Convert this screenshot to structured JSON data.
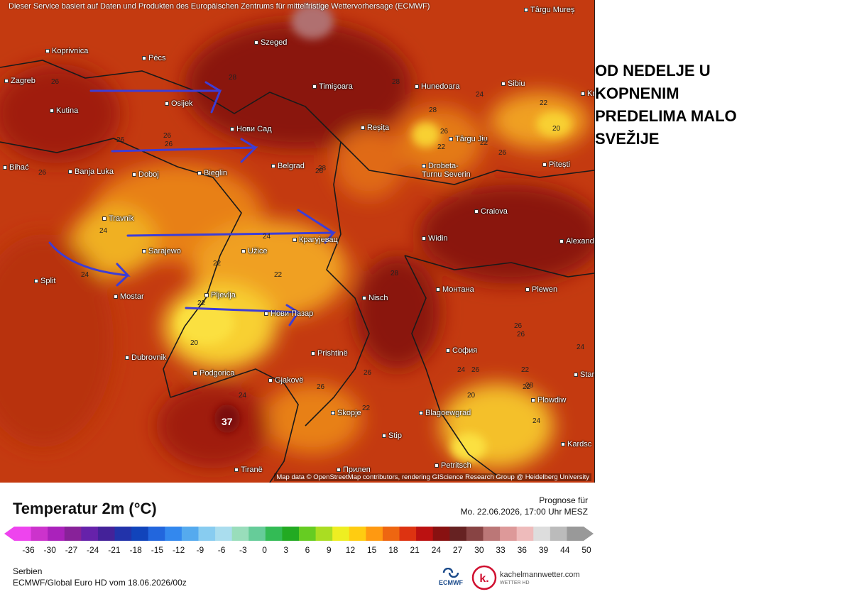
{
  "map": {
    "attribution": "Dieser Service basiert auf Daten und Produkten des Europäischen Zentrums für mittelfristige Wettervorhersage (ECMWF)",
    "map_credit": "Map data © OpenStreetMap contributors, rendering GIScience Research Group @ Heidelberg University",
    "cities": [
      "Koprivnica",
      "Pécs",
      "Szeged",
      "Zagreb",
      "Osijek",
      "Timişoara",
      "Hunedoara",
      "Sibiu",
      "Târgu Mureș",
      "Kutina",
      "Нови Сад",
      "Reșița",
      "Târgu Jiu",
      "Banja Luka",
      "Doboj",
      "Bieglin",
      "Belgrad",
      "Drobeta-Turnu Severin",
      "Pitești",
      "Travnik",
      "Крагујевац",
      "Craiova",
      "Sarajewo",
      "Užice",
      "Widin",
      "Alexand",
      "Split",
      "Mostar",
      "Pljevlja",
      "Nisch",
      "Монтана",
      "Plewen",
      "Нови Пазар",
      "Dubrovnik",
      "Prishtinë",
      "София",
      "Podgorica",
      "Gjakovë",
      "Plowdiw",
      "Skopje",
      "Blagoewgrad",
      "Stip",
      "Kardsc",
      "Tiranë",
      "Прилеп",
      "Petritsch",
      "Stara",
      "Bihać",
      "Kr"
    ],
    "values": [
      "26",
      "26",
      "26",
      "28",
      "28",
      "28",
      "26",
      "24",
      "22",
      "26",
      "20",
      "22",
      "22",
      "26",
      "28",
      "24",
      "24",
      "22",
      "24",
      "22",
      "22",
      "24",
      "26",
      "26",
      "22",
      "24",
      "26",
      "28",
      "26",
      "28",
      "24",
      "24",
      "20",
      "26",
      "20",
      "26",
      "22",
      "22",
      "37",
      "26"
    ]
  },
  "headline": [
    "OD NEDELJE U",
    "KOPNENIM",
    "PREDELIMA MALO",
    "SVEŽIJE"
  ],
  "legend": {
    "title": "Temperatur 2m (°C)",
    "forecast_label": "Prognose für",
    "forecast_date": "Mo. 22.06.2026, 17:00 Uhr MESZ",
    "ticks": [
      "-36",
      "-30",
      "-27",
      "-24",
      "-21",
      "-18",
      "-15",
      "-12",
      "-9",
      "-6",
      "-3",
      "0",
      "3",
      "6",
      "9",
      "12",
      "15",
      "18",
      "21",
      "24",
      "27",
      "30",
      "33",
      "36",
      "39",
      "44",
      "50"
    ],
    "colors": [
      "#ee44ee",
      "#cc33cc",
      "#aa22bb",
      "#882299",
      "#6622aa",
      "#442299",
      "#2233aa",
      "#1144bb",
      "#2266dd",
      "#3388ee",
      "#55aaee",
      "#88ccf0",
      "#aaddee",
      "#99ddbb",
      "#66cc99",
      "#33bb55",
      "#22aa22",
      "#66cc22",
      "#aadd22",
      "#eeee22",
      "#ffcc11",
      "#ff9911",
      "#ee6611",
      "#dd3311",
      "#bb1111",
      "#881111",
      "#662222",
      "#884444",
      "#bb7777",
      "#dd9999",
      "#eebbbb",
      "#dddddd",
      "#bbbbbb",
      "#999999"
    ],
    "region": "Serbien",
    "model": "ECMWF/Global Euro HD vom  18.06.2026/00z",
    "ecmwf_label": "ECMWF",
    "site": "kachelmannwetter.com",
    "site_sub": "WETTER HD",
    "logo_letter": "k."
  }
}
